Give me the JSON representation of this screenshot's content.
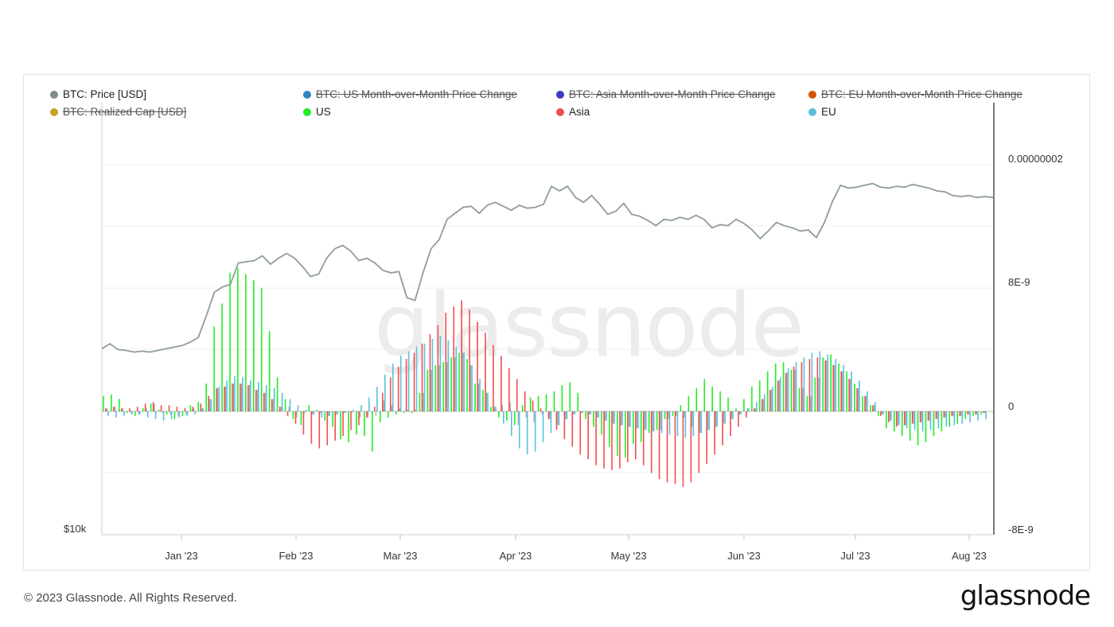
{
  "legend": [
    {
      "label": "BTC: Price [USD]",
      "color": "#7f8c8d",
      "active": true
    },
    {
      "label": "BTC: US Month-over-Month Price Change",
      "color": "#2e86c1",
      "active": false
    },
    {
      "label": "BTC: Asia Month-over-Month Price Change",
      "color": "#3b3bbf",
      "active": false
    },
    {
      "label": "BTC: EU Month-over-Month Price Change",
      "color": "#d35400",
      "active": false
    },
    {
      "label": "BTC: Realized Cap [USD]",
      "color": "#c9a227",
      "active": false
    },
    {
      "label": "US",
      "color": "#22ee22",
      "active": true
    },
    {
      "label": "Asia",
      "color": "#f04e4e",
      "active": true
    },
    {
      "label": "EU",
      "color": "#5bc0de",
      "active": true
    }
  ],
  "watermark": "glassnode",
  "footer": "© 2023 Glassnode. All Rights Reserved.",
  "brand": "glassnode",
  "chart_data": {
    "type": "bar",
    "title": "",
    "x_ticks": [
      "Jan '23",
      "Feb '23",
      "Mar '23",
      "Apr '23",
      "May '23",
      "Jun '23",
      "Jul '23",
      "Aug '23"
    ],
    "left_axis": {
      "labels": [
        "$10k"
      ],
      "scale": "log",
      "range": [
        10000,
        40000
      ]
    },
    "right_axis": {
      "labels": [
        "0.00000002",
        "8E-9",
        "0",
        "-8E-9"
      ],
      "range": [
        -8e-09,
        2e-08
      ]
    },
    "price_series": {
      "name": "BTC: Price [USD]",
      "color": "#8f9ba0",
      "values": [
        16900,
        17200,
        16850,
        16800,
        16700,
        16750,
        16700,
        16800,
        16900,
        17000,
        17100,
        17300,
        17600,
        19000,
        20700,
        21100,
        21300,
        23000,
        23100,
        23200,
        23600,
        22900,
        23400,
        23800,
        23400,
        22700,
        21900,
        22100,
        23400,
        24200,
        24500,
        24000,
        23200,
        23400,
        23000,
        22400,
        22200,
        22300,
        20300,
        20100,
        22200,
        24200,
        25000,
        26900,
        27500,
        28100,
        28200,
        27500,
        28300,
        28600,
        28200,
        27800,
        28300,
        28000,
        28100,
        28400,
        30300,
        29800,
        30300,
        29100,
        28600,
        29300,
        28400,
        27400,
        27700,
        28500,
        27400,
        27200,
        26800,
        26300,
        26900,
        26800,
        27100,
        26900,
        27300,
        26900,
        26100,
        26400,
        26300,
        26900,
        26500,
        25900,
        25100,
        25800,
        26600,
        26300,
        26100,
        25800,
        25900,
        25200,
        26600,
        28700,
        30400,
        30100,
        30200,
        30400,
        30600,
        30200,
        30100,
        30300,
        30200,
        30500,
        30300,
        30100,
        29800,
        29700,
        29300,
        29200,
        29300,
        29100,
        29200,
        29100
      ]
    },
    "series": [
      {
        "name": "US",
        "color": "#22ee22",
        "values": [
          1.0,
          1.1,
          0.8,
          -0.1,
          -0.3,
          0.2,
          0.5,
          0.1,
          -0.2,
          -0.5,
          -0.3,
          0.4,
          0.6,
          1.8,
          5.5,
          7.0,
          9.0,
          9.3,
          8.9,
          8.5,
          8.0,
          5.2,
          2.2,
          0.8,
          -0.5,
          -0.9,
          0.4,
          0.1,
          -0.6,
          -1.0,
          -1.8,
          -2.0,
          -1.5,
          -1.6,
          -2.6,
          -0.7,
          -0.4,
          -0.2,
          -0.1,
          -0.1,
          1.2,
          2.7,
          3.0,
          3.2,
          3.5,
          3.8,
          3.4,
          1.8,
          1.4,
          0.3,
          -0.4,
          -0.6,
          -0.9,
          0.4,
          0.9,
          1.0,
          1.1,
          1.3,
          1.7,
          1.9,
          1.2,
          -0.5,
          -1.0,
          -1.5,
          -2.3,
          -2.9,
          -3.0,
          -2.1,
          -2.0,
          -1.4,
          -1.2,
          -0.5,
          -0.3,
          0.4,
          1.0,
          1.5,
          2.1,
          1.6,
          1.3,
          0.9,
          0.2,
          0.8,
          1.6,
          2.0,
          2.6,
          3.1,
          3.2,
          2.7,
          1.5,
          1.0,
          2.2,
          3.5,
          3.7,
          3.1,
          2.6,
          1.8,
          1.0,
          0.4,
          -0.3,
          -1.1,
          -1.3,
          -1.6,
          -1.9,
          -2.2,
          -2.0,
          -1.6,
          -1.3,
          -1.0,
          -0.8,
          -0.5,
          -0.3,
          -0.2
        ]
      },
      {
        "name": "Asia",
        "color": "#f04e4e",
        "values": [
          0.2,
          0.3,
          0.2,
          0.2,
          0.3,
          0.5,
          0.6,
          0.4,
          0.4,
          0.3,
          0.2,
          0.3,
          0.5,
          1.0,
          1.5,
          1.6,
          1.8,
          1.8,
          1.7,
          1.4,
          1.2,
          0.8,
          0.3,
          -0.3,
          -0.8,
          -1.5,
          -2.1,
          -2.4,
          -2.2,
          -1.9,
          -1.6,
          -1.2,
          -0.9,
          -0.4,
          0.3,
          1.2,
          2.2,
          2.9,
          3.4,
          3.8,
          4.4,
          5.0,
          5.6,
          6.4,
          6.8,
          7.2,
          6.6,
          5.8,
          5.1,
          4.3,
          3.6,
          2.8,
          2.1,
          1.3,
          0.7,
          0.2,
          -0.5,
          -1.2,
          -1.8,
          -2.3,
          -2.8,
          -3.1,
          -3.5,
          -3.7,
          -3.8,
          -3.7,
          -3.3,
          -3.1,
          -3.5,
          -4.0,
          -4.4,
          -4.6,
          -4.7,
          -4.9,
          -4.6,
          -4.0,
          -3.4,
          -2.8,
          -2.2,
          -1.6,
          -1.0,
          -0.4,
          0.2,
          0.8,
          1.4,
          2.0,
          2.5,
          2.9,
          3.2,
          3.4,
          3.5,
          3.3,
          3.0,
          2.6,
          2.1,
          1.5,
          1.0,
          0.4,
          -0.3,
          -0.7,
          -1.0,
          -0.9,
          -0.8,
          -0.7,
          -0.6,
          -0.5,
          -0.4,
          -0.3,
          -0.3,
          -0.2,
          -0.2,
          -0.1
        ]
      },
      {
        "name": "EU",
        "color": "#5bc0de",
        "values": [
          -0.3,
          -0.4,
          -0.3,
          -0.2,
          -0.2,
          -0.4,
          -0.5,
          -0.6,
          -0.5,
          -0.4,
          -0.3,
          -0.2,
          0.2,
          0.8,
          1.6,
          2.0,
          2.3,
          2.2,
          2.0,
          1.9,
          1.7,
          1.5,
          1.2,
          0.8,
          0.4,
          0.1,
          -0.2,
          -0.4,
          -0.3,
          -0.2,
          -0.1,
          0.1,
          0.4,
          0.9,
          1.6,
          2.4,
          3.1,
          3.6,
          3.9,
          4.2,
          4.4,
          4.7,
          4.9,
          4.6,
          4.2,
          3.8,
          3.0,
          2.1,
          1.2,
          0.3,
          -0.8,
          -1.6,
          -2.4,
          -2.8,
          -2.6,
          -2.0,
          -1.4,
          -0.9,
          -0.5,
          -0.2,
          -0.1,
          -0.2,
          -0.4,
          -0.6,
          -0.8,
          -0.9,
          -1.0,
          -1.1,
          -1.2,
          -1.3,
          -1.4,
          -1.5,
          -1.6,
          -1.7,
          -1.6,
          -1.4,
          -1.2,
          -1.0,
          -0.8,
          -0.5,
          -0.2,
          0.2,
          0.6,
          1.1,
          1.6,
          2.2,
          2.8,
          3.2,
          3.5,
          3.8,
          3.9,
          3.7,
          3.4,
          3.0,
          2.6,
          2.0,
          1.3,
          0.6,
          -0.2,
          -0.6,
          -0.9,
          -1.1,
          -1.2,
          -1.3,
          -1.2,
          -1.1,
          -1.0,
          -0.9,
          -0.8,
          -0.7,
          -0.6,
          -0.5
        ]
      }
    ]
  }
}
